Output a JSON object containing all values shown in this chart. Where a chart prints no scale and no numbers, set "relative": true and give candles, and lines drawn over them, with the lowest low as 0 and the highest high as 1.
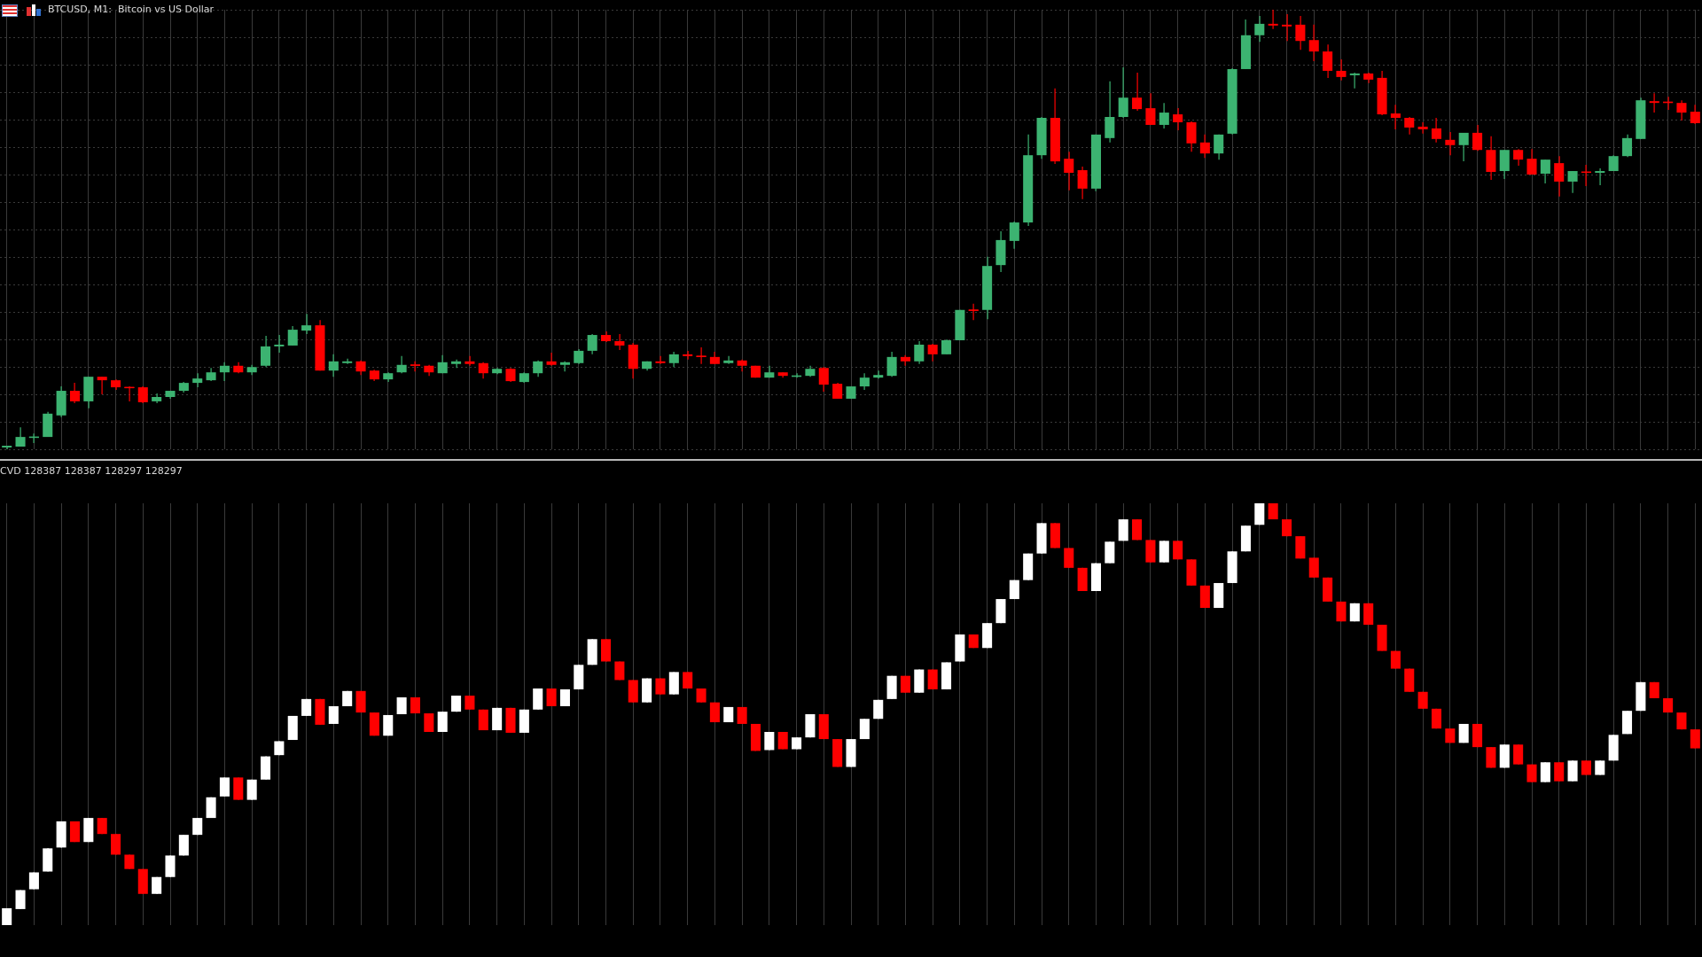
{
  "chart_data": [
    {
      "type": "candlestick",
      "title": "BTCUSD, M1:  Bitcoin vs US Dollar",
      "relative": true,
      "grid": true,
      "colors": [
        "#3cb371",
        "#3cb371",
        "#3cb371",
        "#3cb371",
        "#3cb371",
        "#ff0000",
        "#3cb371",
        "#ff0000",
        "#ff0000",
        "#ff0000",
        "#ff0000",
        "#3cb371",
        "#3cb371",
        "#3cb371",
        "#3cb371",
        "#3cb371",
        "#3cb371",
        "#ff0000",
        "#3cb371",
        "#3cb371",
        "#3cb371",
        "#3cb371",
        "#3cb371",
        "#ff0000",
        "#3cb371",
        "#3cb371",
        "#ff0000",
        "#ff0000",
        "#3cb371",
        "#3cb371",
        "#ff0000",
        "#ff0000",
        "#3cb371",
        "#3cb371",
        "#ff0000",
        "#ff0000",
        "#3cb371",
        "#ff0000",
        "#3cb371",
        "#3cb371",
        "#ff0000",
        "#3cb371",
        "#3cb371",
        "#3cb371",
        "#ff0000",
        "#ff0000",
        "#ff0000",
        "#3cb371",
        "#ff0000",
        "#3cb371",
        "#ff0000",
        "#ff0000",
        "#ff0000",
        "#3cb371",
        "#ff0000",
        "#ff0000",
        "#3cb371",
        "#ff0000",
        "#3cb371",
        "#3cb371",
        "#ff0000",
        "#ff0000",
        "#3cb371",
        "#3cb371",
        "#3cb371",
        "#3cb371",
        "#ff0000",
        "#3cb371",
        "#ff0000",
        "#3cb371",
        "#3cb371",
        "#ff0000",
        "#3cb371",
        "#3cb371",
        "#3cb371",
        "#3cb371",
        "#3cb371",
        "#ff0000",
        "#ff0000",
        "#ff0000",
        "#3cb371",
        "#3cb371",
        "#3cb371",
        "#ff0000",
        "#ff0000",
        "#3cb371",
        "#ff0000",
        "#ff0000",
        "#ff0000",
        "#3cb371",
        "#3cb371",
        "#3cb371",
        "#3cb371",
        "#ff0000",
        "#ff0000",
        "#ff0000",
        "#ff0000",
        "#ff0000",
        "#ff0000",
        "#3cb371",
        "#ff0000",
        "#ff0000",
        "#ff0000",
        "#ff0000",
        "#ff0000",
        "#ff0000",
        "#ff0000",
        "#3cb371",
        "#ff0000",
        "#ff0000",
        "#3cb371",
        "#ff0000",
        "#ff0000",
        "#3cb371",
        "#ff0000",
        "#3cb371",
        "#ff0000",
        "#3cb371",
        "#3cb371",
        "#3cb371",
        "#3cb371",
        "#ff0000",
        "#ff0000",
        "#ff0000",
        "#ff0000"
      ],
      "categories": [
        null,
        null,
        null,
        null,
        null,
        null,
        null,
        null,
        null,
        null,
        null,
        null,
        null,
        null,
        null,
        null,
        null,
        null,
        null,
        null,
        null,
        null,
        null,
        null,
        null,
        null,
        null,
        null,
        null,
        null,
        null,
        null,
        null,
        null,
        null,
        null,
        null,
        null,
        null,
        null,
        null,
        null,
        null,
        null,
        null,
        null,
        null,
        null,
        null,
        null,
        null,
        null,
        null,
        null,
        null,
        null,
        null,
        null,
        null,
        null,
        null,
        null,
        null,
        null,
        null,
        null,
        null,
        null,
        null,
        null,
        null,
        null,
        null,
        null,
        null,
        null,
        null,
        null,
        null,
        null,
        null,
        null,
        null,
        null,
        null,
        null,
        null,
        null,
        null,
        null,
        null,
        null,
        null,
        null,
        null,
        null,
        null,
        null,
        null,
        null,
        null,
        null,
        null,
        null,
        null,
        null,
        null,
        null,
        null,
        null,
        null,
        null,
        null,
        null,
        null,
        null,
        null,
        null,
        null,
        null,
        null,
        null,
        null,
        null,
        null
      ],
      "ohlc": [
        [
          0.004,
          0.008,
          0,
          0.008
        ],
        [
          0.006,
          0.05,
          0.006,
          0.028
        ],
        [
          0.026,
          0.036,
          0.014,
          0.028
        ],
        [
          0.028,
          0.085,
          0.028,
          0.081
        ],
        [
          0.077,
          0.143,
          0.073,
          0.133
        ],
        [
          0.133,
          0.151,
          0.105,
          0.109
        ],
        [
          0.109,
          0.165,
          0.093,
          0.165
        ],
        [
          0.165,
          0.165,
          0.125,
          0.157
        ],
        [
          0.157,
          0.159,
          0.135,
          0.141
        ],
        [
          0.141,
          0.143,
          0.109,
          0.139
        ],
        [
          0.141,
          0.143,
          0.105,
          0.107
        ],
        [
          0.109,
          0.127,
          0.105,
          0.119
        ],
        [
          0.119,
          0.133,
          0.115,
          0.133
        ],
        [
          0.133,
          0.153,
          0.129,
          0.151
        ],
        [
          0.151,
          0.173,
          0.141,
          0.161
        ],
        [
          0.157,
          0.185,
          0.155,
          0.175
        ],
        [
          0.175,
          0.198,
          0.155,
          0.19
        ],
        [
          0.19,
          0.198,
          0.173,
          0.175
        ],
        [
          0.175,
          0.192,
          0.169,
          0.187
        ],
        [
          0.19,
          0.258,
          0.187,
          0.234
        ],
        [
          0.234,
          0.26,
          0.22,
          0.238
        ],
        [
          0.236,
          0.28,
          0.236,
          0.272
        ],
        [
          0.27,
          0.308,
          0.262,
          0.282
        ],
        [
          0.282,
          0.294,
          0.179,
          0.179
        ],
        [
          0.179,
          0.216,
          0.165,
          0.2
        ],
        [
          0.196,
          0.206,
          0.194,
          0.2
        ],
        [
          0.2,
          0.202,
          0.169,
          0.177
        ],
        [
          0.179,
          0.181,
          0.155,
          0.159
        ],
        [
          0.159,
          0.175,
          0.153,
          0.173
        ],
        [
          0.175,
          0.212,
          0.173,
          0.192
        ],
        [
          0.192,
          0.2,
          0.177,
          0.19
        ],
        [
          0.19,
          0.192,
          0.167,
          0.175
        ],
        [
          0.173,
          0.214,
          0.173,
          0.198
        ],
        [
          0.194,
          0.204,
          0.185,
          0.2
        ],
        [
          0.2,
          0.212,
          0.19,
          0.194
        ],
        [
          0.196,
          0.198,
          0.161,
          0.173
        ],
        [
          0.173,
          0.185,
          0.171,
          0.183
        ],
        [
          0.183,
          0.185,
          0.153,
          0.155
        ],
        [
          0.153,
          0.175,
          0.151,
          0.173
        ],
        [
          0.173,
          0.202,
          0.165,
          0.2
        ],
        [
          0.2,
          0.22,
          0.19,
          0.192
        ],
        [
          0.192,
          0.2,
          0.177,
          0.198
        ],
        [
          0.196,
          0.228,
          0.194,
          0.224
        ],
        [
          0.224,
          0.262,
          0.216,
          0.26
        ],
        [
          0.26,
          0.268,
          0.244,
          0.246
        ],
        [
          0.246,
          0.262,
          0.226,
          0.236
        ],
        [
          0.238,
          0.242,
          0.161,
          0.183
        ],
        [
          0.183,
          0.2,
          0.179,
          0.2
        ],
        [
          0.2,
          0.212,
          0.194,
          0.196
        ],
        [
          0.196,
          0.222,
          0.187,
          0.216
        ],
        [
          0.216,
          0.224,
          0.204,
          0.212
        ],
        [
          0.212,
          0.232,
          0.194,
          0.21
        ],
        [
          0.21,
          0.222,
          0.194,
          0.194
        ],
        [
          0.196,
          0.212,
          0.194,
          0.202
        ],
        [
          0.202,
          0.204,
          0.177,
          0.19
        ],
        [
          0.19,
          0.19,
          0.163,
          0.163
        ],
        [
          0.163,
          0.19,
          0.163,
          0.175
        ],
        [
          0.175,
          0.175,
          0.163,
          0.167
        ],
        [
          0.165,
          0.173,
          0.163,
          0.167
        ],
        [
          0.167,
          0.19,
          0.165,
          0.183
        ],
        [
          0.185,
          0.187,
          0.131,
          0.147
        ],
        [
          0.149,
          0.151,
          0.115,
          0.115
        ],
        [
          0.115,
          0.143,
          0.115,
          0.143
        ],
        [
          0.143,
          0.173,
          0.135,
          0.163
        ],
        [
          0.163,
          0.179,
          0.161,
          0.169
        ],
        [
          0.167,
          0.222,
          0.165,
          0.21
        ],
        [
          0.21,
          0.214,
          0.19,
          0.2
        ],
        [
          0.2,
          0.246,
          0.194,
          0.238
        ],
        [
          0.238,
          0.24,
          0.2,
          0.216
        ],
        [
          0.216,
          0.25,
          0.216,
          0.248
        ],
        [
          0.248,
          0.317,
          0.248,
          0.317
        ],
        [
          0.317,
          0.331,
          0.294,
          0.315
        ],
        [
          0.317,
          0.438,
          0.296,
          0.417
        ],
        [
          0.419,
          0.496,
          0.403,
          0.476
        ],
        [
          0.474,
          0.518,
          0.456,
          0.516
        ],
        [
          0.516,
          0.716,
          0.508,
          0.669
        ],
        [
          0.669,
          0.756,
          0.661,
          0.754
        ],
        [
          0.754,
          0.821,
          0.649,
          0.655
        ],
        [
          0.661,
          0.677,
          0.589,
          0.629
        ],
        [
          0.635,
          0.643,
          0.569,
          0.593
        ],
        [
          0.593,
          0.716,
          0.587,
          0.716
        ],
        [
          0.708,
          0.837,
          0.698,
          0.756
        ],
        [
          0.756,
          0.869,
          0.754,
          0.8
        ],
        [
          0.8,
          0.857,
          0.77,
          0.774
        ],
        [
          0.776,
          0.81,
          0.738,
          0.738
        ],
        [
          0.738,
          0.788,
          0.73,
          0.766
        ],
        [
          0.762,
          0.776,
          0.726,
          0.744
        ],
        [
          0.744,
          0.746,
          0.677,
          0.696
        ],
        [
          0.698,
          0.716,
          0.663,
          0.673
        ],
        [
          0.673,
          0.716,
          0.659,
          0.716
        ],
        [
          0.718,
          0.867,
          0.716,
          0.865
        ],
        [
          0.865,
          0.978,
          0.865,
          0.942
        ],
        [
          0.942,
          0.986,
          0.927,
          0.968
        ],
        [
          0.968,
          1,
          0.956,
          0.964
        ],
        [
          0.966,
          0.99,
          0.929,
          0.962
        ],
        [
          0.966,
          0.986,
          0.909,
          0.929
        ],
        [
          0.931,
          0.966,
          0.883,
          0.905
        ],
        [
          0.905,
          0.921,
          0.845,
          0.861
        ],
        [
          0.861,
          0.887,
          0.839,
          0.847
        ],
        [
          0.851,
          0.857,
          0.821,
          0.855
        ],
        [
          0.855,
          0.857,
          0.833,
          0.841
        ],
        [
          0.845,
          0.861,
          0.76,
          0.762
        ],
        [
          0.764,
          0.784,
          0.728,
          0.754
        ],
        [
          0.754,
          0.756,
          0.716,
          0.732
        ],
        [
          0.734,
          0.744,
          0.718,
          0.728
        ],
        [
          0.73,
          0.754,
          0.698,
          0.706
        ],
        [
          0.704,
          0.722,
          0.669,
          0.692
        ],
        [
          0.692,
          0.72,
          0.655,
          0.72
        ],
        [
          0.72,
          0.738,
          0.679,
          0.681
        ],
        [
          0.681,
          0.712,
          0.613,
          0.631
        ],
        [
          0.633,
          0.681,
          0.615,
          0.681
        ],
        [
          0.681,
          0.683,
          0.645,
          0.659
        ],
        [
          0.661,
          0.683,
          0.625,
          0.625
        ],
        [
          0.627,
          0.659,
          0.605,
          0.659
        ],
        [
          0.651,
          0.667,
          0.575,
          0.609
        ],
        [
          0.609,
          0.633,
          0.583,
          0.633
        ],
        [
          0.631,
          0.647,
          0.599,
          0.629
        ],
        [
          0.629,
          0.639,
          0.601,
          0.633
        ],
        [
          0.633,
          0.669,
          0.633,
          0.667
        ],
        [
          0.667,
          0.716,
          0.665,
          0.708
        ],
        [
          0.706,
          0.8,
          0.706,
          0.794
        ],
        [
          0.792,
          0.81,
          0.766,
          0.788
        ],
        [
          0.79,
          0.802,
          0.772,
          0.788
        ],
        [
          0.788,
          0.794,
          0.748,
          0.766
        ],
        [
          0.768,
          0.784,
          0.74,
          0.742
        ]
      ]
    },
    {
      "type": "candlestick",
      "title": "CVD 128387 128387 128297 128297",
      "relative": true,
      "grid": "x",
      "colors": [
        "#ffffff",
        "#ffffff",
        "#ffffff",
        "#ffffff",
        "#ffffff",
        "#ff0000",
        "#ffffff",
        "#ff0000",
        "#ff0000",
        "#ff0000",
        "#ff0000",
        "#ffffff",
        "#ffffff",
        "#ffffff",
        "#ffffff",
        "#ffffff",
        "#ffffff",
        "#ff0000",
        "#ffffff",
        "#ffffff",
        "#ffffff",
        "#ffffff",
        "#ffffff",
        "#ff0000",
        "#ffffff",
        "#ffffff",
        "#ff0000",
        "#ff0000",
        "#ffffff",
        "#ffffff",
        "#ff0000",
        "#ff0000",
        "#ffffff",
        "#ffffff",
        "#ff0000",
        "#ff0000",
        "#ffffff",
        "#ff0000",
        "#ffffff",
        "#ffffff",
        "#ff0000",
        "#ffffff",
        "#ffffff",
        "#ffffff",
        "#ff0000",
        "#ff0000",
        "#ff0000",
        "#ffffff",
        "#ff0000",
        "#ffffff",
        "#ff0000",
        "#ff0000",
        "#ff0000",
        "#ffffff",
        "#ff0000",
        "#ff0000",
        "#ffffff",
        "#ff0000",
        "#ffffff",
        "#ffffff",
        "#ff0000",
        "#ff0000",
        "#ffffff",
        "#ffffff",
        "#ffffff",
        "#ffffff",
        "#ff0000",
        "#ffffff",
        "#ff0000",
        "#ffffff",
        "#ffffff",
        "#ff0000",
        "#ffffff",
        "#ffffff",
        "#ffffff",
        "#ffffff",
        "#ffffff",
        "#ff0000",
        "#ff0000",
        "#ff0000",
        "#ffffff",
        "#ffffff",
        "#ffffff",
        "#ff0000",
        "#ff0000",
        "#ffffff",
        "#ff0000",
        "#ff0000",
        "#ff0000",
        "#ffffff",
        "#ffffff",
        "#ffffff",
        "#ffffff",
        "#ff0000",
        "#ff0000",
        "#ff0000",
        "#ff0000",
        "#ff0000",
        "#ff0000",
        "#ffffff",
        "#ff0000",
        "#ff0000",
        "#ff0000",
        "#ff0000",
        "#ff0000",
        "#ff0000",
        "#ff0000",
        "#ffffff",
        "#ff0000",
        "#ff0000",
        "#ffffff",
        "#ff0000",
        "#ff0000",
        "#ffffff",
        "#ff0000",
        "#ffffff",
        "#ff0000",
        "#ffffff",
        "#ffffff",
        "#ffffff",
        "#ffffff",
        "#ff0000",
        "#ff0000",
        "#ff0000",
        "#ff0000"
      ],
      "categories": [
        null,
        null,
        null,
        null,
        null,
        null,
        null,
        null,
        null,
        null,
        null,
        null,
        null,
        null,
        null,
        null,
        null,
        null,
        null,
        null,
        null,
        null,
        null,
        null,
        null,
        null,
        null,
        null,
        null,
        null,
        null,
        null,
        null,
        null,
        null,
        null,
        null,
        null,
        null,
        null,
        null,
        null,
        null,
        null,
        null,
        null,
        null,
        null,
        null,
        null,
        null,
        null,
        null,
        null,
        null,
        null,
        null,
        null,
        null,
        null,
        null,
        null,
        null,
        null,
        null,
        null,
        null,
        null,
        null,
        null,
        null,
        null,
        null,
        null,
        null,
        null,
        null,
        null,
        null,
        null,
        null,
        null,
        null,
        null,
        null,
        null,
        null,
        null,
        null,
        null,
        null,
        null,
        null,
        null,
        null,
        null,
        null,
        null,
        null,
        null,
        null,
        null,
        null,
        null,
        null,
        null,
        null,
        null,
        null,
        null,
        null,
        null,
        null,
        null,
        null,
        null,
        null,
        null,
        null,
        null,
        null,
        null,
        null,
        null,
        null
      ],
      "ohlc": [
        [
          0,
          0.04,
          0,
          0.04
        ],
        [
          0.038,
          0.083,
          0.038,
          0.083
        ],
        [
          0.085,
          0.125,
          0.085,
          0.125
        ],
        [
          0.127,
          0.182,
          0.127,
          0.182
        ],
        [
          0.184,
          0.246,
          0.184,
          0.246
        ],
        [
          0.246,
          0.246,
          0.197,
          0.197
        ],
        [
          0.197,
          0.254,
          0.197,
          0.254
        ],
        [
          0.254,
          0.254,
          0.216,
          0.216
        ],
        [
          0.216,
          0.216,
          0.167,
          0.167
        ],
        [
          0.167,
          0.167,
          0.133,
          0.133
        ],
        [
          0.133,
          0.133,
          0.074,
          0.074
        ],
        [
          0.074,
          0.114,
          0.074,
          0.114
        ],
        [
          0.114,
          0.165,
          0.114,
          0.165
        ],
        [
          0.165,
          0.214,
          0.165,
          0.214
        ],
        [
          0.214,
          0.254,
          0.214,
          0.254
        ],
        [
          0.254,
          0.303,
          0.254,
          0.303
        ],
        [
          0.305,
          0.35,
          0.305,
          0.35
        ],
        [
          0.35,
          0.35,
          0.297,
          0.297
        ],
        [
          0.297,
          0.345,
          0.297,
          0.345
        ],
        [
          0.345,
          0.4,
          0.345,
          0.4
        ],
        [
          0.403,
          0.436,
          0.403,
          0.436
        ],
        [
          0.439,
          0.496,
          0.439,
          0.496
        ],
        [
          0.496,
          0.536,
          0.496,
          0.536
        ],
        [
          0.536,
          0.536,
          0.475,
          0.475
        ],
        [
          0.477,
          0.519,
          0.477,
          0.519
        ],
        [
          0.519,
          0.555,
          0.519,
          0.555
        ],
        [
          0.555,
          0.555,
          0.504,
          0.504
        ],
        [
          0.504,
          0.504,
          0.449,
          0.449
        ],
        [
          0.449,
          0.498,
          0.449,
          0.498
        ],
        [
          0.5,
          0.54,
          0.5,
          0.54
        ],
        [
          0.54,
          0.54,
          0.502,
          0.502
        ],
        [
          0.502,
          0.502,
          0.458,
          0.458
        ],
        [
          0.458,
          0.506,
          0.458,
          0.506
        ],
        [
          0.506,
          0.544,
          0.506,
          0.544
        ],
        [
          0.544,
          0.544,
          0.511,
          0.511
        ],
        [
          0.511,
          0.511,
          0.462,
          0.462
        ],
        [
          0.462,
          0.515,
          0.462,
          0.515
        ],
        [
          0.515,
          0.515,
          0.456,
          0.456
        ],
        [
          0.456,
          0.511,
          0.456,
          0.511
        ],
        [
          0.511,
          0.561,
          0.511,
          0.561
        ],
        [
          0.561,
          0.561,
          0.519,
          0.519
        ],
        [
          0.519,
          0.559,
          0.519,
          0.559
        ],
        [
          0.559,
          0.617,
          0.559,
          0.617
        ],
        [
          0.617,
          0.678,
          0.617,
          0.678
        ],
        [
          0.678,
          0.678,
          0.625,
          0.625
        ],
        [
          0.625,
          0.625,
          0.581,
          0.581
        ],
        [
          0.581,
          0.581,
          0.528,
          0.528
        ],
        [
          0.528,
          0.585,
          0.528,
          0.585
        ],
        [
          0.585,
          0.585,
          0.547,
          0.547
        ],
        [
          0.547,
          0.6,
          0.547,
          0.6
        ],
        [
          0.6,
          0.6,
          0.561,
          0.561
        ],
        [
          0.561,
          0.561,
          0.528,
          0.528
        ],
        [
          0.528,
          0.528,
          0.481,
          0.481
        ],
        [
          0.481,
          0.517,
          0.481,
          0.517
        ],
        [
          0.517,
          0.517,
          0.477,
          0.477
        ],
        [
          0.477,
          0.477,
          0.413,
          0.413
        ],
        [
          0.415,
          0.458,
          0.415,
          0.458
        ],
        [
          0.458,
          0.458,
          0.417,
          0.417
        ],
        [
          0.417,
          0.445,
          0.417,
          0.445
        ],
        [
          0.445,
          0.5,
          0.445,
          0.5
        ],
        [
          0.5,
          0.5,
          0.441,
          0.441
        ],
        [
          0.441,
          0.441,
          0.375,
          0.375
        ],
        [
          0.375,
          0.441,
          0.375,
          0.441
        ],
        [
          0.441,
          0.489,
          0.441,
          0.489
        ],
        [
          0.489,
          0.534,
          0.489,
          0.534
        ],
        [
          0.536,
          0.591,
          0.536,
          0.591
        ],
        [
          0.591,
          0.591,
          0.551,
          0.551
        ],
        [
          0.551,
          0.606,
          0.551,
          0.606
        ],
        [
          0.606,
          0.606,
          0.559,
          0.559
        ],
        [
          0.559,
          0.623,
          0.559,
          0.623
        ],
        [
          0.625,
          0.689,
          0.625,
          0.689
        ],
        [
          0.689,
          0.689,
          0.657,
          0.657
        ],
        [
          0.657,
          0.716,
          0.657,
          0.716
        ],
        [
          0.716,
          0.773,
          0.716,
          0.773
        ],
        [
          0.773,
          0.818,
          0.773,
          0.818
        ],
        [
          0.818,
          0.881,
          0.818,
          0.881
        ],
        [
          0.881,
          0.953,
          0.881,
          0.953
        ],
        [
          0.953,
          0.953,
          0.894,
          0.894
        ],
        [
          0.894,
          0.894,
          0.847,
          0.847
        ],
        [
          0.847,
          0.847,
          0.792,
          0.792
        ],
        [
          0.792,
          0.858,
          0.792,
          0.858
        ],
        [
          0.858,
          0.909,
          0.858,
          0.909
        ],
        [
          0.911,
          0.962,
          0.911,
          0.962
        ],
        [
          0.962,
          0.962,
          0.913,
          0.913
        ],
        [
          0.913,
          0.913,
          0.86,
          0.86
        ],
        [
          0.86,
          0.911,
          0.86,
          0.911
        ],
        [
          0.911,
          0.911,
          0.867,
          0.867
        ],
        [
          0.867,
          0.867,
          0.805,
          0.805
        ],
        [
          0.805,
          0.805,
          0.752,
          0.752
        ],
        [
          0.752,
          0.811,
          0.752,
          0.811
        ],
        [
          0.811,
          0.886,
          0.811,
          0.886
        ],
        [
          0.886,
          0.947,
          0.886,
          0.947
        ],
        [
          0.949,
          1,
          0.949,
          1
        ],
        [
          1,
          1,
          0.962,
          0.962
        ],
        [
          0.962,
          0.962,
          0.922,
          0.922
        ],
        [
          0.922,
          0.922,
          0.869,
          0.869
        ],
        [
          0.871,
          0.871,
          0.824,
          0.824
        ],
        [
          0.824,
          0.824,
          0.767,
          0.767
        ],
        [
          0.767,
          0.767,
          0.72,
          0.72
        ],
        [
          0.72,
          0.763,
          0.72,
          0.763
        ],
        [
          0.763,
          0.763,
          0.712,
          0.712
        ],
        [
          0.712,
          0.712,
          0.65,
          0.65
        ],
        [
          0.65,
          0.65,
          0.608,
          0.608
        ],
        [
          0.608,
          0.608,
          0.553,
          0.553
        ],
        [
          0.553,
          0.553,
          0.513,
          0.513
        ],
        [
          0.513,
          0.513,
          0.466,
          0.466
        ],
        [
          0.466,
          0.466,
          0.432,
          0.432
        ],
        [
          0.432,
          0.477,
          0.432,
          0.477
        ],
        [
          0.477,
          0.477,
          0.422,
          0.422
        ],
        [
          0.422,
          0.422,
          0.373,
          0.373
        ],
        [
          0.373,
          0.428,
          0.373,
          0.428
        ],
        [
          0.428,
          0.428,
          0.381,
          0.381
        ],
        [
          0.381,
          0.381,
          0.339,
          0.339
        ],
        [
          0.339,
          0.386,
          0.339,
          0.386
        ],
        [
          0.386,
          0.386,
          0.341,
          0.341
        ],
        [
          0.341,
          0.39,
          0.341,
          0.39
        ],
        [
          0.39,
          0.39,
          0.356,
          0.356
        ],
        [
          0.356,
          0.39,
          0.356,
          0.39
        ],
        [
          0.39,
          0.451,
          0.39,
          0.451
        ],
        [
          0.453,
          0.508,
          0.453,
          0.508
        ],
        [
          0.508,
          0.576,
          0.508,
          0.576
        ],
        [
          0.576,
          0.576,
          0.538,
          0.538
        ],
        [
          0.538,
          0.538,
          0.504,
          0.504
        ],
        [
          0.504,
          0.504,
          0.464,
          0.464
        ],
        [
          0.464,
          0.464,
          0.419,
          0.419
        ]
      ]
    }
  ]
}
